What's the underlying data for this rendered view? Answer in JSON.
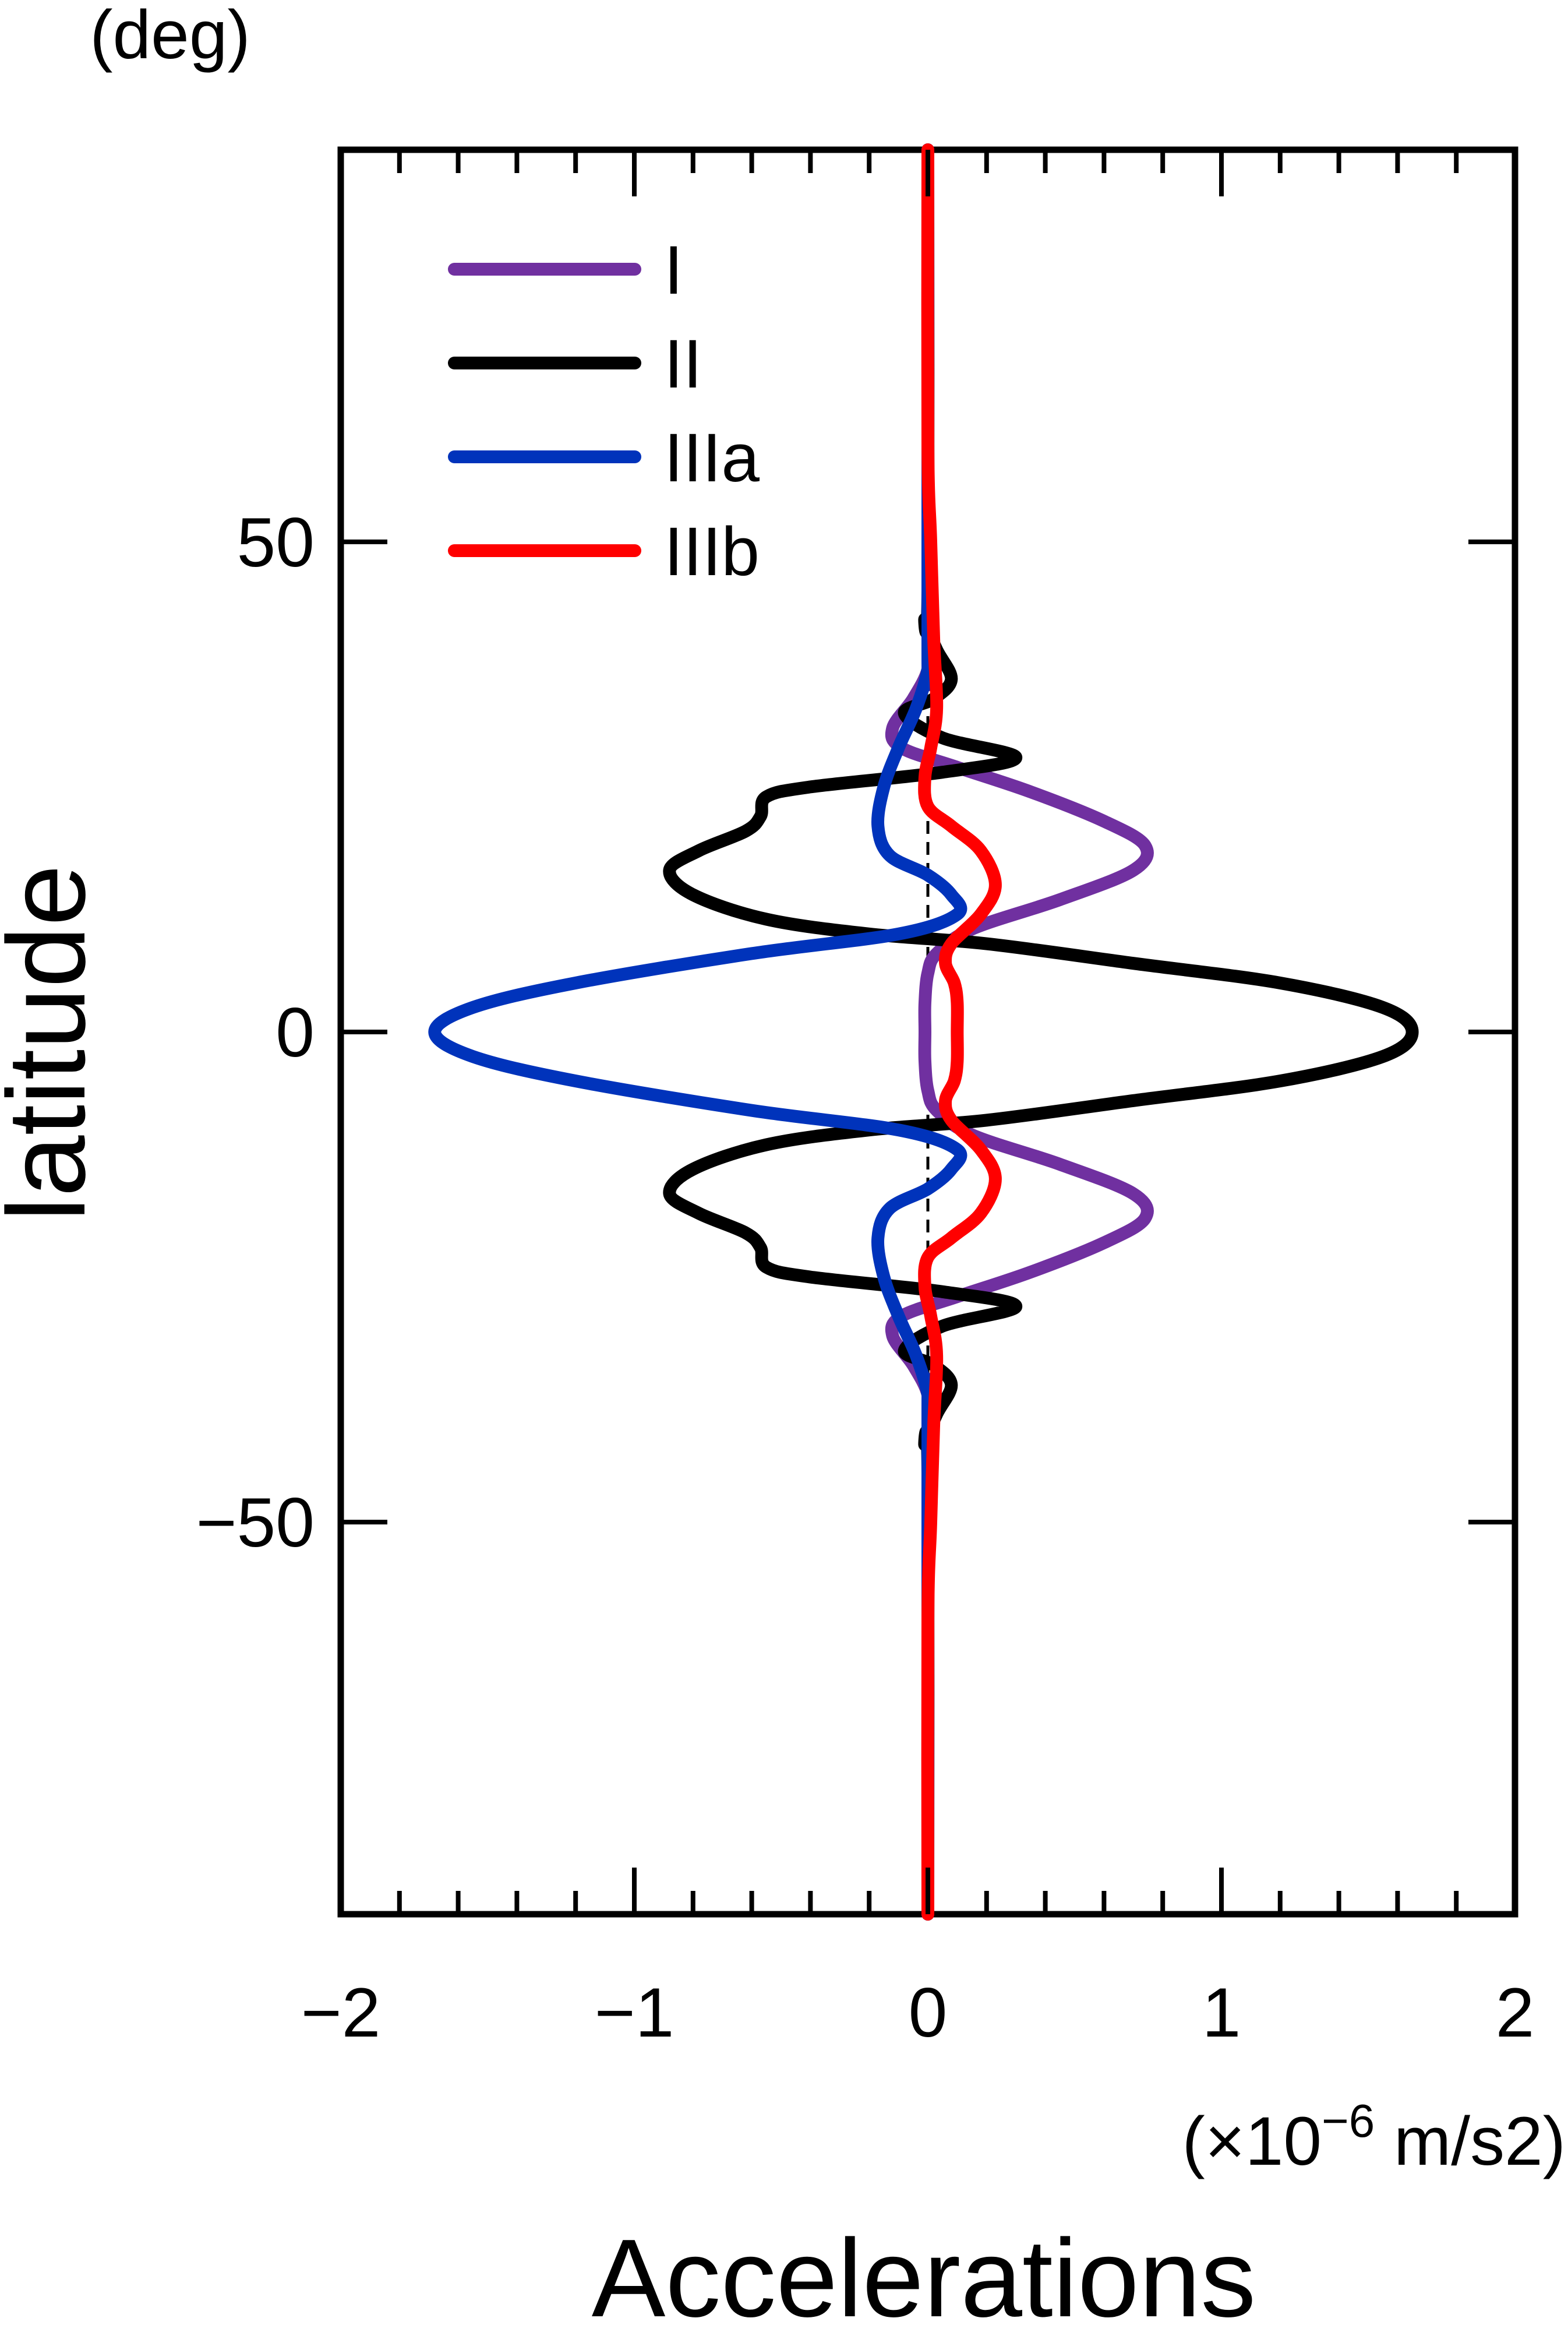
{
  "chart_data": {
    "type": "line",
    "xlabel": "Accelerations",
    "xunit": "(×10^−6 m/s2)",
    "xunit_parts": {
      "pre": "(×10",
      "exp": "−6",
      "post": " m/s2)"
    },
    "ylabel": "latitude",
    "yunit": "(deg)",
    "xlim": [
      -2,
      2
    ],
    "ylim": [
      -90,
      90
    ],
    "xticks": [
      {
        "value": -2,
        "label": "−2"
      },
      {
        "value": -1,
        "label": "−1"
      },
      {
        "value": 0,
        "label": "0"
      },
      {
        "value": 1,
        "label": "1"
      },
      {
        "value": 2,
        "label": "2"
      }
    ],
    "yticks": [
      {
        "value": -50,
        "label": "−50"
      },
      {
        "value": 0,
        "label": "0"
      },
      {
        "value": 50,
        "label": "50"
      }
    ],
    "x_minor_step": 0.2,
    "zero_reference_line": "dashed",
    "grid": false,
    "legend_position": "top-left",
    "series": [
      {
        "name": "I",
        "color": "#7030a0",
        "points": [
          [
            0.0,
            90
          ],
          [
            0.0,
            40
          ],
          [
            0.0,
            37
          ],
          [
            -0.05,
            34
          ],
          [
            -0.12,
            31
          ],
          [
            -0.09,
            29
          ],
          [
            0.1,
            27
          ],
          [
            0.35,
            24.5
          ],
          [
            0.6,
            21.5
          ],
          [
            0.74,
            19
          ],
          [
            0.7,
            16.5
          ],
          [
            0.45,
            13.5
          ],
          [
            0.15,
            10.5
          ],
          [
            0.03,
            8
          ],
          [
            0.0,
            6
          ],
          [
            -0.01,
            3
          ],
          [
            -0.01,
            0
          ],
          [
            -0.01,
            -3
          ],
          [
            0.0,
            -6
          ],
          [
            0.03,
            -8
          ],
          [
            0.15,
            -10.5
          ],
          [
            0.45,
            -13.5
          ],
          [
            0.7,
            -16.5
          ],
          [
            0.74,
            -19
          ],
          [
            0.6,
            -21.5
          ],
          [
            0.35,
            -24.5
          ],
          [
            0.1,
            -27
          ],
          [
            -0.09,
            -29
          ],
          [
            -0.12,
            -31
          ],
          [
            -0.05,
            -34
          ],
          [
            0.0,
            -37
          ],
          [
            0.0,
            -40
          ],
          [
            0.0,
            -90
          ]
        ]
      },
      {
        "name": "II",
        "color": "#000000",
        "points": [
          [
            0.0,
            90
          ],
          [
            0.0,
            45
          ],
          [
            -0.01,
            42
          ],
          [
            0.03,
            39
          ],
          [
            0.08,
            36
          ],
          [
            0.02,
            34
          ],
          [
            -0.08,
            32.5
          ],
          [
            0.05,
            30
          ],
          [
            0.3,
            28
          ],
          [
            0.05,
            26.5
          ],
          [
            -0.4,
            25
          ],
          [
            -0.55,
            24
          ],
          [
            -0.57,
            22
          ],
          [
            -0.62,
            20.5
          ],
          [
            -0.78,
            18.5
          ],
          [
            -0.88,
            16.5
          ],
          [
            -0.8,
            14
          ],
          [
            -0.55,
            11.5
          ],
          [
            -0.2,
            10
          ],
          [
            0.2,
            9
          ],
          [
            0.7,
            7
          ],
          [
            1.2,
            5
          ],
          [
            1.55,
            2.5
          ],
          [
            1.65,
            0
          ],
          [
            1.55,
            -2.5
          ],
          [
            1.2,
            -5
          ],
          [
            0.7,
            -7
          ],
          [
            0.2,
            -9
          ],
          [
            -0.2,
            -10
          ],
          [
            -0.55,
            -11.5
          ],
          [
            -0.8,
            -14
          ],
          [
            -0.88,
            -16.5
          ],
          [
            -0.78,
            -18.5
          ],
          [
            -0.62,
            -20.5
          ],
          [
            -0.57,
            -22
          ],
          [
            -0.55,
            -24
          ],
          [
            -0.4,
            -25
          ],
          [
            0.05,
            -26.5
          ],
          [
            0.3,
            -28
          ],
          [
            0.05,
            -30
          ],
          [
            -0.08,
            -32.5
          ],
          [
            0.02,
            -34
          ],
          [
            0.08,
            -36
          ],
          [
            0.03,
            -39
          ],
          [
            -0.01,
            -42
          ],
          [
            0.0,
            -45
          ],
          [
            0.0,
            -90
          ]
        ]
      },
      {
        "name": "IIIa",
        "color": "#0033bb",
        "points": [
          [
            0.0,
            90
          ],
          [
            0.0,
            40
          ],
          [
            0.0,
            37
          ],
          [
            -0.04,
            33
          ],
          [
            -0.1,
            29
          ],
          [
            -0.15,
            25
          ],
          [
            -0.17,
            21
          ],
          [
            -0.13,
            18
          ],
          [
            0.0,
            16
          ],
          [
            0.08,
            14
          ],
          [
            0.1,
            12
          ],
          [
            -0.1,
            10
          ],
          [
            -0.6,
            8
          ],
          [
            -1.2,
            5
          ],
          [
            -1.55,
            2.5
          ],
          [
            -1.68,
            0
          ],
          [
            -1.55,
            -2.5
          ],
          [
            -1.2,
            -5
          ],
          [
            -0.6,
            -8
          ],
          [
            -0.1,
            -10
          ],
          [
            0.1,
            -12
          ],
          [
            0.08,
            -14
          ],
          [
            0.0,
            -16
          ],
          [
            -0.13,
            -18
          ],
          [
            -0.17,
            -21
          ],
          [
            -0.15,
            -25
          ],
          [
            -0.1,
            -29
          ],
          [
            -0.04,
            -33
          ],
          [
            0.0,
            -37
          ],
          [
            0.0,
            -40
          ],
          [
            0.0,
            -90
          ]
        ]
      },
      {
        "name": "IIIb",
        "color": "#ff0000",
        "points": [
          [
            0.0,
            90
          ],
          [
            0.0,
            60
          ],
          [
            0.01,
            50
          ],
          [
            0.02,
            40
          ],
          [
            0.03,
            33
          ],
          [
            0.01,
            29
          ],
          [
            -0.01,
            26
          ],
          [
            0.0,
            23
          ],
          [
            0.08,
            21
          ],
          [
            0.18,
            18.5
          ],
          [
            0.23,
            15
          ],
          [
            0.18,
            12
          ],
          [
            0.08,
            9
          ],
          [
            0.06,
            7
          ],
          [
            0.09,
            5
          ],
          [
            0.1,
            3
          ],
          [
            0.1,
            0
          ],
          [
            0.1,
            -3
          ],
          [
            0.09,
            -5
          ],
          [
            0.06,
            -7
          ],
          [
            0.08,
            -9
          ],
          [
            0.18,
            -12
          ],
          [
            0.23,
            -15
          ],
          [
            0.18,
            -18.5
          ],
          [
            0.08,
            -21
          ],
          [
            0.0,
            -23
          ],
          [
            -0.01,
            -26
          ],
          [
            0.01,
            -29
          ],
          [
            0.03,
            -33
          ],
          [
            0.02,
            -40
          ],
          [
            0.01,
            -50
          ],
          [
            0.0,
            -60
          ],
          [
            0.0,
            -90
          ]
        ]
      }
    ]
  }
}
